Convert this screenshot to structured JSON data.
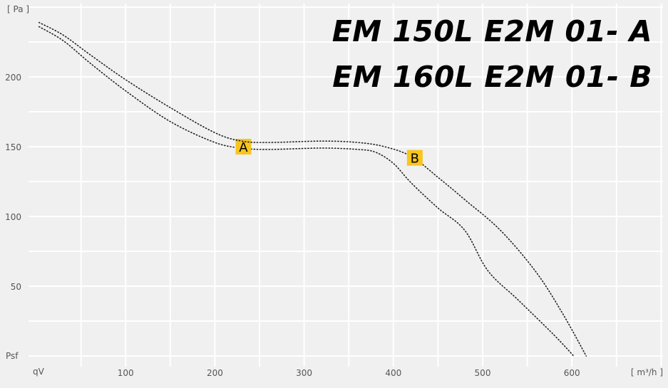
{
  "chart_data": {
    "type": "line",
    "titles": [
      "EM 150L E2M 01- A",
      "EM 160L E2M 01- B"
    ],
    "xlabel_left": "qV",
    "xunit": "[ m³/h ]",
    "yunit": "[ Pa ]",
    "ylabel_bottom": "Psf",
    "xlim": [
      0,
      700
    ],
    "ylim": [
      0,
      250
    ],
    "xticks": [
      100,
      200,
      300,
      400,
      500,
      600
    ],
    "yticks": [
      50,
      100,
      150,
      200
    ],
    "grid": true,
    "series": [
      {
        "name": "A",
        "label_at": [
          232,
          150
        ],
        "x": [
          3,
          30,
          60,
          100,
          150,
          200,
          230,
          260,
          320,
          360,
          380,
          400,
          420,
          450,
          480,
          506,
          540,
          580,
          602
        ],
        "y": [
          236,
          226,
          210,
          190,
          168,
          153,
          149,
          148,
          149,
          148,
          146,
          138,
          124,
          106,
          90,
          61,
          40,
          15,
          0
        ]
      },
      {
        "name": "B",
        "label_at": [
          424,
          142
        ],
        "x": [
          3,
          30,
          60,
          100,
          150,
          200,
          230,
          260,
          320,
          360,
          390,
          420,
          450,
          480,
          520,
          560,
          590,
          616
        ],
        "y": [
          239,
          230,
          216,
          198,
          178,
          160,
          154,
          153,
          154,
          153,
          150,
          143,
          128,
          112,
          90,
          60,
          30,
          0
        ]
      }
    ],
    "colors": {
      "grid": "#ffffff",
      "curve": "#222222",
      "label_bg": "#f7c51e",
      "tick": "#555555"
    }
  }
}
